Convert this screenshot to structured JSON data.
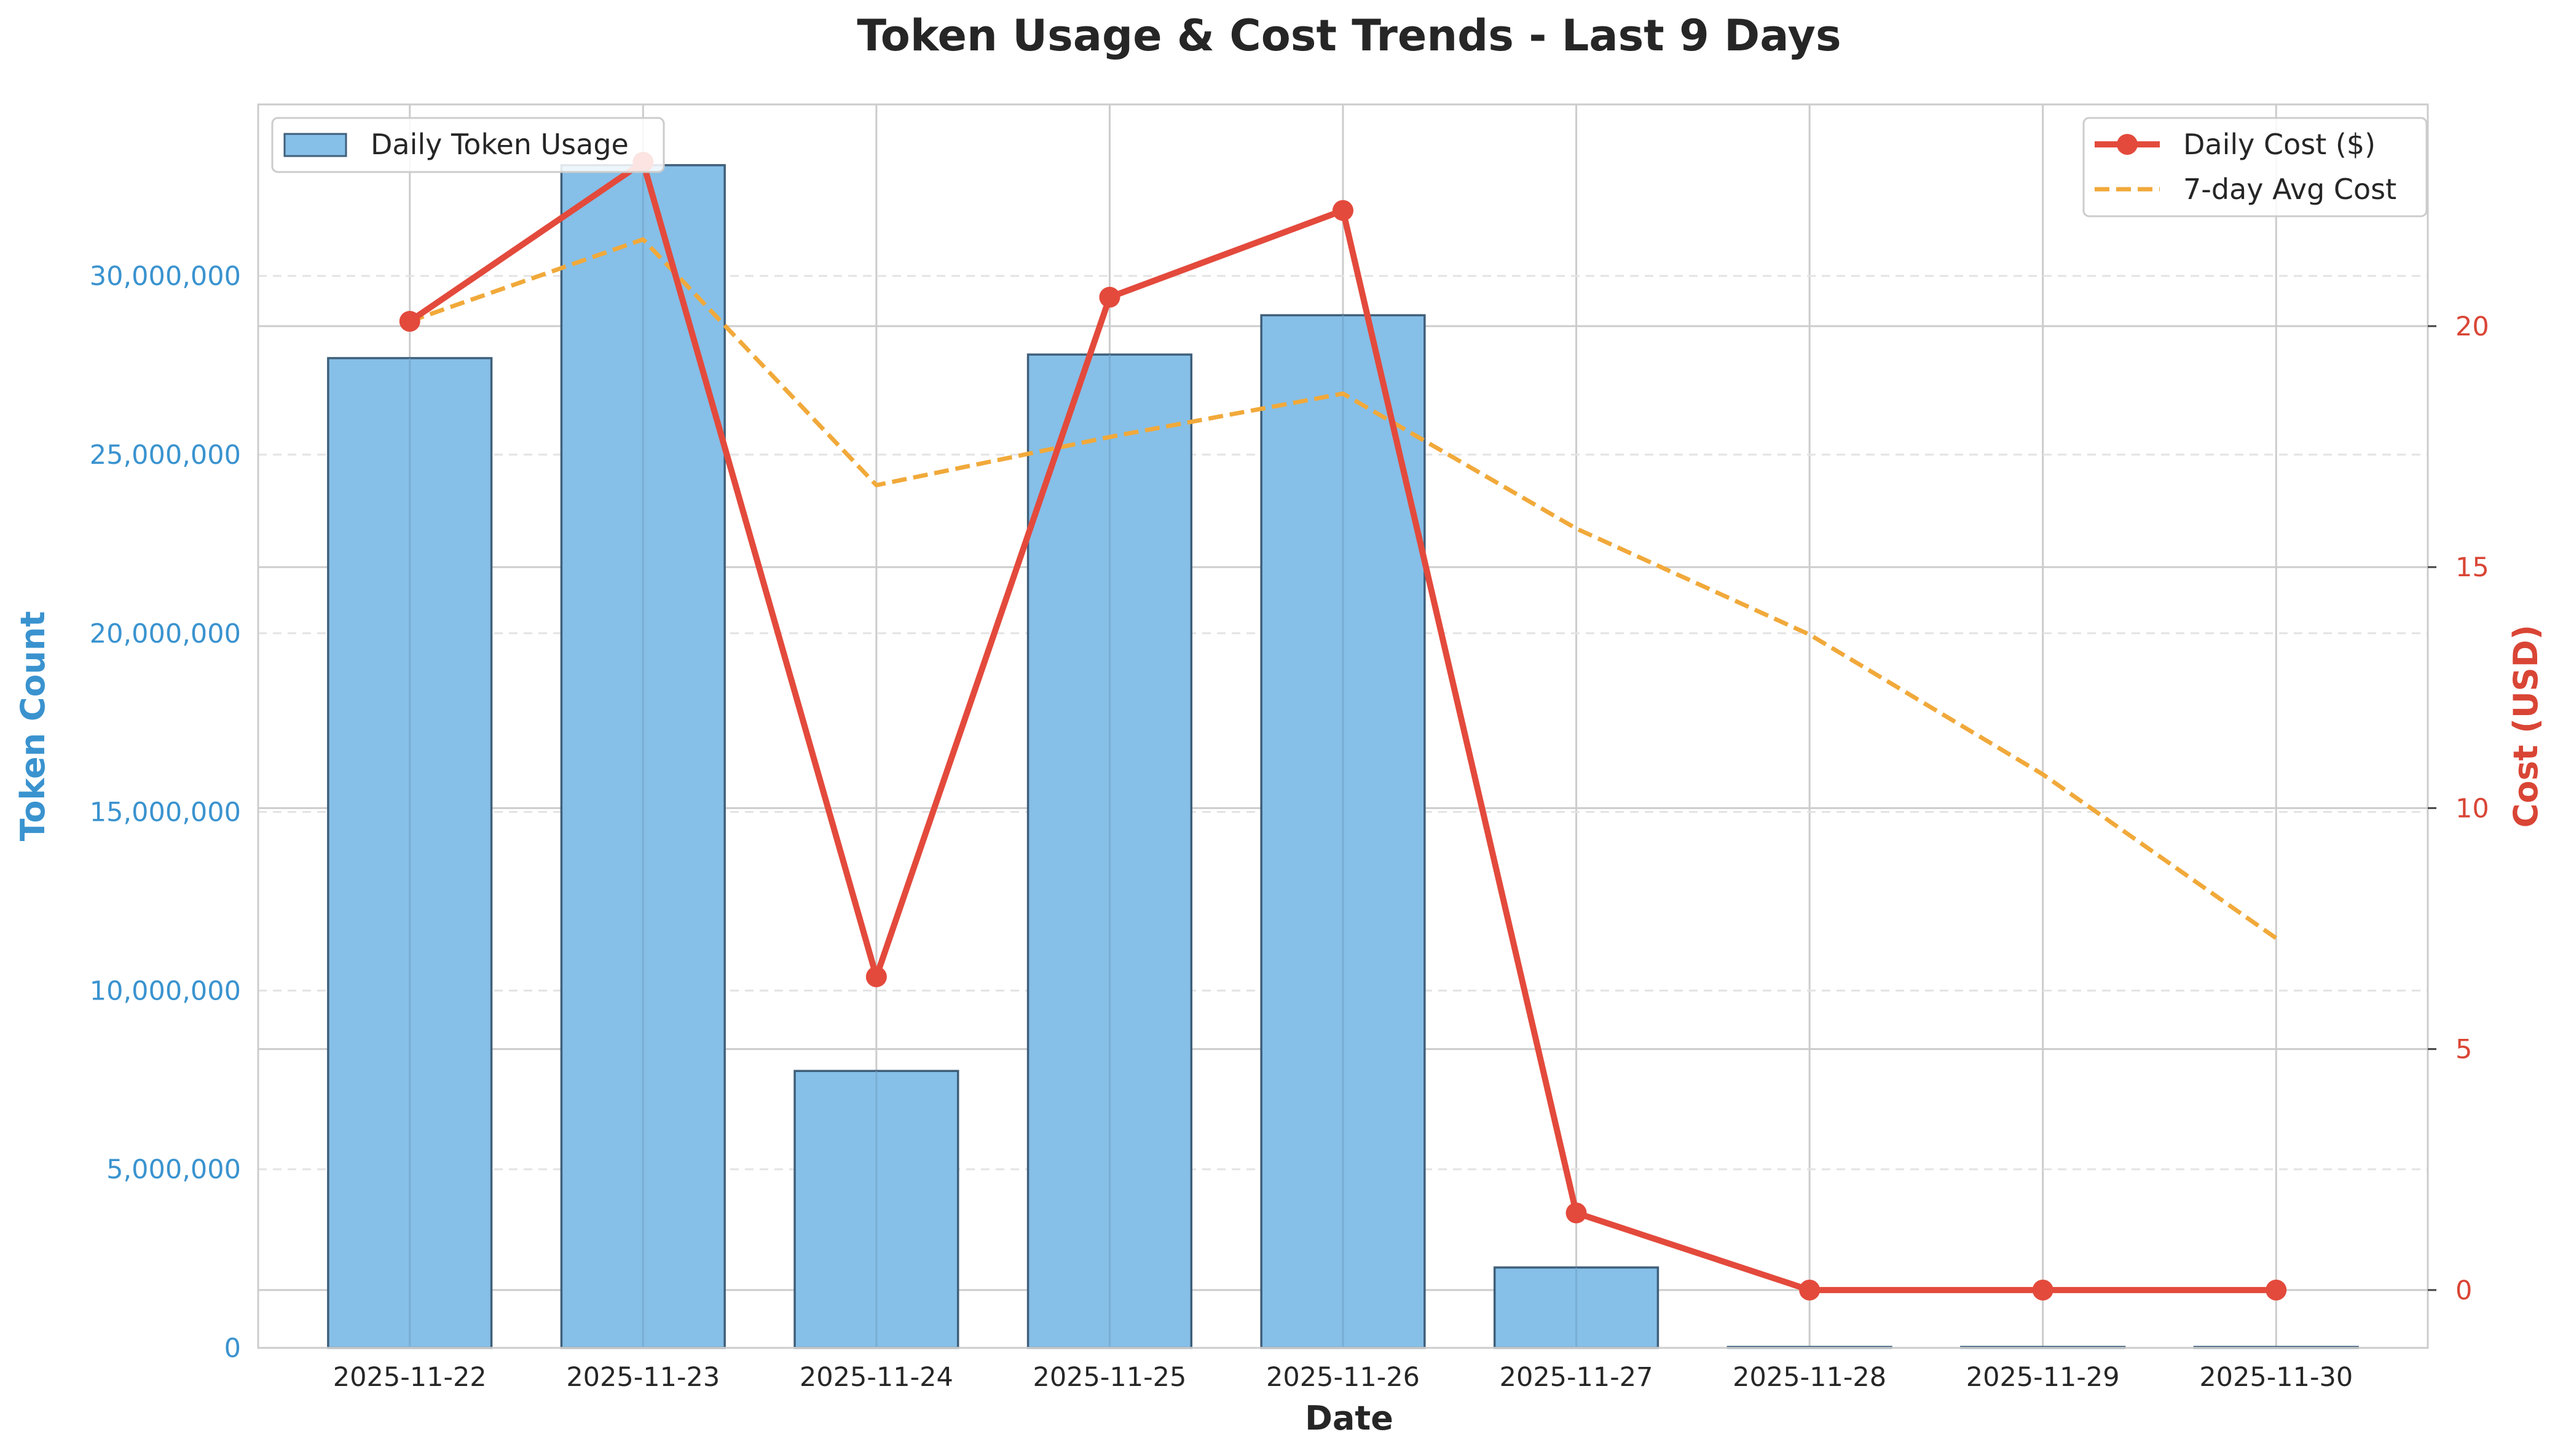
{
  "chart_data": {
    "type": "bar",
    "title": "Token Usage & Cost Trends - Last 9 Days",
    "xlabel": "Date",
    "ylabel_left": "Token Count",
    "ylabel_right": "Cost (USD)",
    "categories": [
      "2025-11-22",
      "2025-11-23",
      "2025-11-24",
      "2025-11-25",
      "2025-11-26",
      "2025-11-27",
      "2025-11-28",
      "2025-11-29",
      "2025-11-30"
    ],
    "ylim_left": [
      0,
      34800000
    ],
    "ylim_right": [
      -1.2,
      24.6
    ],
    "yticks_left": [
      0,
      5000000,
      10000000,
      15000000,
      20000000,
      25000000,
      30000000
    ],
    "ytick_labels_left": [
      "0",
      "5,000,000",
      "10,000,000",
      "15,000,000",
      "20,000,000",
      "25,000,000",
      "30,000,000"
    ],
    "yticks_right": [
      0,
      5,
      10,
      15,
      20
    ],
    "ytick_labels_right": [
      "0",
      "5",
      "10",
      "15",
      "20"
    ],
    "series": [
      {
        "name": "Daily Token Usage",
        "kind": "bar",
        "axis": "left",
        "color": "#86bfe8",
        "values": [
          27700000,
          33100000,
          7750000,
          27800000,
          28900000,
          2250000,
          0,
          0,
          0
        ]
      },
      {
        "name": "Daily Cost ($)",
        "kind": "line",
        "axis": "right",
        "color": "#e34a3c",
        "values": [
          20.1,
          23.4,
          6.5,
          20.6,
          22.4,
          1.6,
          0,
          0,
          0
        ]
      },
      {
        "name": "7-day Avg Cost",
        "kind": "line-dashed",
        "axis": "right",
        "color": "#f1a93a",
        "values": [
          20.1,
          21.8,
          16.7,
          17.7,
          18.6,
          15.8,
          13.6,
          10.7,
          7.3
        ]
      }
    ],
    "legend_left_placement": "top-left",
    "legend_right_placement": "top-right",
    "grid": true,
    "colors": {
      "left_axis": "#3a93cf",
      "right_axis": "#d94535",
      "grid": "#cccccc",
      "bar_edge": "#3f5f7a"
    }
  }
}
